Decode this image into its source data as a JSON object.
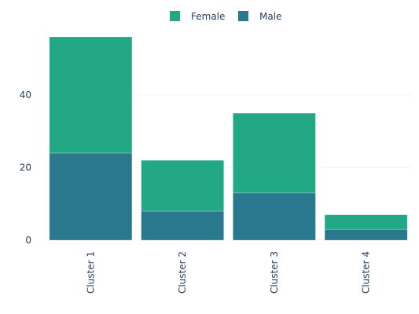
{
  "chart_data": {
    "type": "bar",
    "stacked": true,
    "title": "",
    "xlabel": "",
    "ylabel": "",
    "categories": [
      "Cluster 1",
      "Cluster 2",
      "Cluster 3",
      "Cluster 4"
    ],
    "series": [
      {
        "name": "Male",
        "values": [
          24,
          8,
          13,
          3
        ],
        "color": "#2a788e"
      },
      {
        "name": "Female",
        "values": [
          32,
          14,
          22,
          4
        ],
        "color": "#22a884"
      }
    ],
    "ylim": [
      0,
      57.5
    ],
    "yticks": [
      0,
      20,
      40
    ],
    "grid": true,
    "legend": {
      "placement": "top-center",
      "order": [
        "Female",
        "Male"
      ]
    }
  }
}
